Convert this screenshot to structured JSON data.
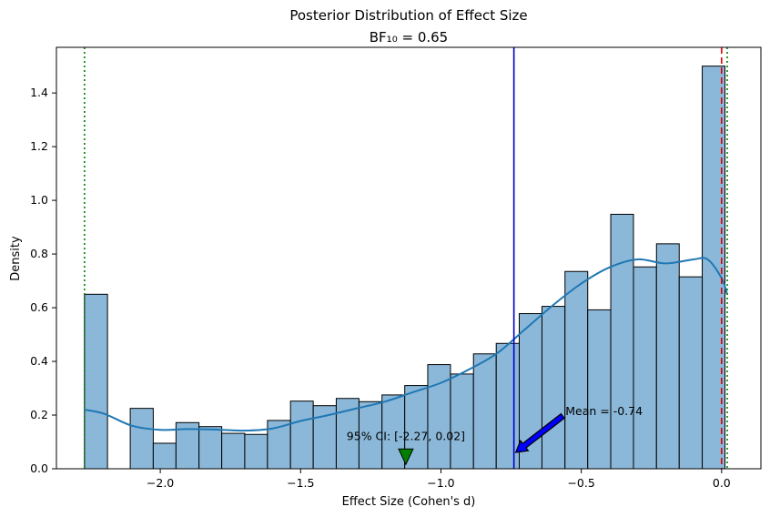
{
  "chart_data": {
    "type": "bar",
    "title": "Posterior Distribution of Effect Size",
    "subtitle": "BF₁₀ = 0.65",
    "xlabel": "Effect Size (Cohen's d)",
    "ylabel": "Density",
    "xlim": [
      -2.37,
      0.14
    ],
    "ylim": [
      0,
      1.57
    ],
    "grid": false,
    "x_ticks": [
      -2.0,
      -1.5,
      -1.0,
      -0.5,
      0.0
    ],
    "x_tick_labels": [
      "−2.0",
      "−1.5",
      "−1.0",
      "−0.5",
      "0.0"
    ],
    "y_ticks": [
      0.0,
      0.2,
      0.4,
      0.6,
      0.8,
      1.0,
      1.2,
      1.4
    ],
    "y_tick_labels": [
      "0.0",
      "0.2",
      "0.4",
      "0.6",
      "0.8",
      "1.0",
      "1.2",
      "1.4"
    ],
    "histogram": {
      "bin_edges": [
        -2.27,
        -2.188,
        -2.107,
        -2.025,
        -1.944,
        -1.862,
        -1.781,
        -1.699,
        -1.618,
        -1.536,
        -1.455,
        -1.373,
        -1.292,
        -1.21,
        -1.129,
        -1.047,
        -0.966,
        -0.884,
        -0.803,
        -0.721,
        -0.64,
        -0.558,
        -0.477,
        -0.395,
        -0.314,
        -0.232,
        -0.151,
        -0.069,
        0.012
      ],
      "values": [
        0.65,
        0.0,
        0.225,
        0.095,
        0.172,
        0.157,
        0.132,
        0.128,
        0.18,
        0.252,
        0.235,
        0.262,
        0.25,
        0.275,
        0.31,
        0.388,
        0.353,
        0.428,
        0.467,
        0.578,
        0.605,
        0.735,
        0.592,
        0.948,
        0.752,
        0.838,
        0.715,
        1.5
      ],
      "color": "#8bb8d9",
      "edge_color": "#000000"
    },
    "kde": {
      "color": "#1f77b4",
      "x": [
        -2.27,
        -2.2,
        -2.1,
        -2.0,
        -1.9,
        -1.8,
        -1.7,
        -1.6,
        -1.5,
        -1.4,
        -1.3,
        -1.2,
        -1.1,
        -1.0,
        -0.9,
        -0.8,
        -0.7,
        -0.6,
        -0.5,
        -0.4,
        -0.3,
        -0.2,
        -0.1,
        -0.05,
        0.0,
        0.02
      ],
      "y": [
        0.22,
        0.205,
        0.16,
        0.145,
        0.148,
        0.146,
        0.142,
        0.15,
        0.178,
        0.2,
        0.225,
        0.25,
        0.285,
        0.32,
        0.37,
        0.43,
        0.52,
        0.61,
        0.69,
        0.75,
        0.78,
        0.765,
        0.78,
        0.78,
        0.71,
        0.65
      ]
    },
    "lines": [
      {
        "name": "mean",
        "x": -0.74,
        "color": "#0000cc",
        "style": "solid"
      },
      {
        "name": "null",
        "x": 0.0,
        "color": "#dd0000",
        "style": "dashed"
      },
      {
        "name": "ci-lower",
        "x": -2.27,
        "color": "#008000",
        "style": "dotted"
      },
      {
        "name": "ci-upper",
        "x": 0.02,
        "color": "#008000",
        "style": "dotted"
      }
    ],
    "annotations": {
      "mean": {
        "text": "Mean = -0.74",
        "x": -0.74,
        "y": 0.0,
        "text_x": -0.55,
        "text_y": 0.2,
        "color": "#0000ff"
      },
      "ci": {
        "text": "95% CI: [-2.27, 0.02]",
        "x": -1.125,
        "y": 0.04,
        "text_x": -1.125,
        "text_y": 0.1,
        "color": "#008000"
      }
    }
  }
}
